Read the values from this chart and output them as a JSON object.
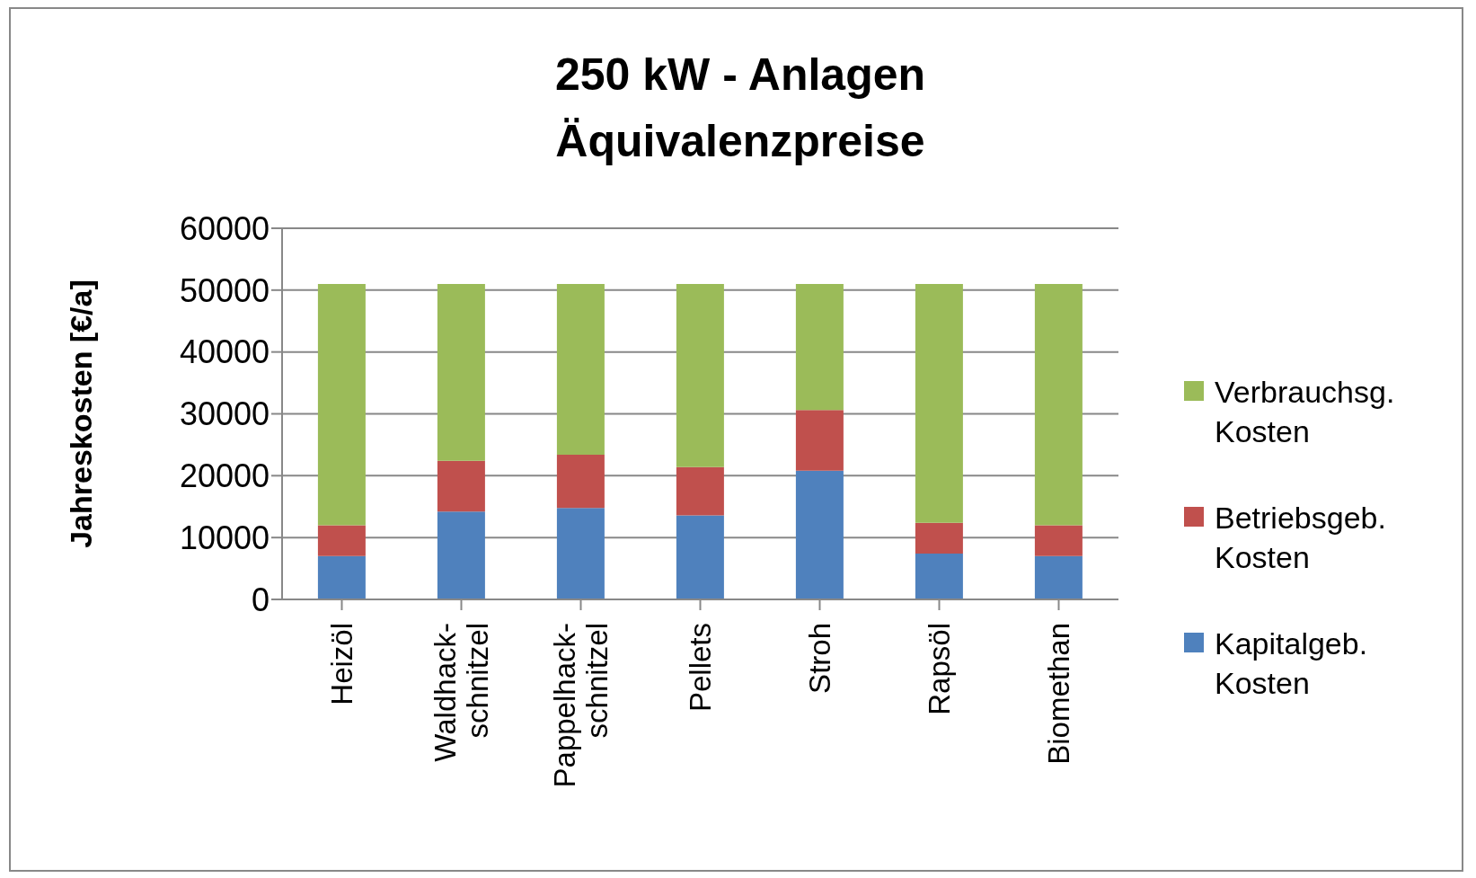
{
  "chart_data": {
    "type": "bar",
    "title": "250 kW - Anlagen\nÄquivalenzpreise",
    "ylabel": "Jahreskosten [€/a]",
    "categories": [
      "Heizöl",
      "Waldhack-\nschnitzel",
      "Pappelhack-\nschnitzel",
      "Pellets",
      "Stroh",
      "Rapsöl",
      "Biomethan"
    ],
    "stacked": true,
    "series": [
      {
        "name": "Kapitalgeb. Kosten",
        "color": "#4f81bd",
        "values": [
          7000,
          14200,
          14800,
          13600,
          20800,
          7400,
          7000
        ]
      },
      {
        "name": "Betriebsgeb. Kosten",
        "color": "#c0504d",
        "values": [
          5000,
          8200,
          8600,
          7800,
          9800,
          5000,
          5000
        ]
      },
      {
        "name": "Verbrauchsg. Kosten",
        "color": "#9bbb59",
        "values": [
          39000,
          28600,
          27600,
          29600,
          20400,
          38600,
          39000
        ]
      }
    ],
    "ylim": [
      0,
      60000
    ],
    "yticks": [
      0,
      10000,
      20000,
      30000,
      40000,
      50000,
      60000
    ],
    "grid": "y",
    "legend": "right"
  }
}
